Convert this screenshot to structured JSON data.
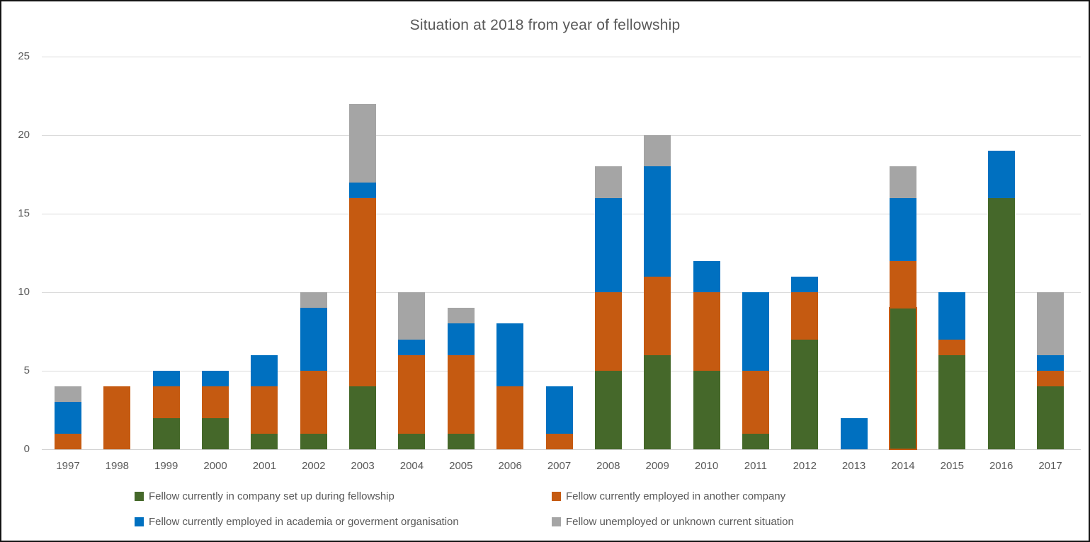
{
  "chart_data": {
    "type": "bar",
    "stacked": true,
    "title": "Situation at 2018 from year of fellowship",
    "categories": [
      "1997",
      "1998",
      "1999",
      "2000",
      "2001",
      "2002",
      "2003",
      "2004",
      "2005",
      "2006",
      "2007",
      "2008",
      "2009",
      "2010",
      "2011",
      "2012",
      "2013",
      "2014",
      "2015",
      "2016",
      "2017"
    ],
    "series": [
      {
        "name": "Fellow currently in company set up during fellowship",
        "color": "#45682A",
        "values": [
          0,
          0,
          2,
          2,
          1,
          1,
          4,
          1,
          1,
          0,
          0,
          5,
          6,
          5,
          1,
          7,
          0,
          9,
          6,
          16,
          4
        ]
      },
      {
        "name": "Fellow currently employed in another company",
        "color": "#C55A11",
        "values": [
          1,
          4,
          2,
          2,
          3,
          4,
          12,
          5,
          5,
          4,
          1,
          5,
          5,
          5,
          4,
          3,
          0,
          3,
          1,
          0,
          1
        ]
      },
      {
        "name": "Fellow currently employed in academia or goverment organisation",
        "color": "#0070C0",
        "values": [
          2,
          0,
          1,
          1,
          2,
          4,
          1,
          1,
          2,
          4,
          3,
          6,
          7,
          2,
          5,
          1,
          2,
          4,
          3,
          3,
          1
        ]
      },
      {
        "name": "Fellow unemployed or unknown current situation",
        "color": "#A5A5A5",
        "values": [
          1,
          0,
          0,
          0,
          0,
          1,
          5,
          3,
          1,
          0,
          0,
          2,
          2,
          0,
          0,
          0,
          0,
          2,
          0,
          0,
          4
        ]
      }
    ],
    "totals": [
      4,
      4,
      5,
      5,
      6,
      10,
      22,
      10,
      9,
      8,
      4,
      18,
      20,
      12,
      10,
      11,
      2,
      18,
      10,
      19,
      10
    ],
    "xlabel": "",
    "ylabel": "",
    "ylim": [
      0,
      25
    ],
    "y_ticks": [
      "0",
      "5",
      "10",
      "15",
      "20",
      "25"
    ],
    "grid": "horizontal",
    "legend_position": "bottom",
    "legend_rows": [
      [
        0,
        1
      ],
      [
        2,
        3
      ]
    ],
    "highlighted_segment": {
      "category": "2014",
      "series_index": 0,
      "outline_color": "#C55A11"
    },
    "text_color": "#595959",
    "gridline_color": "#DBDBDB"
  }
}
